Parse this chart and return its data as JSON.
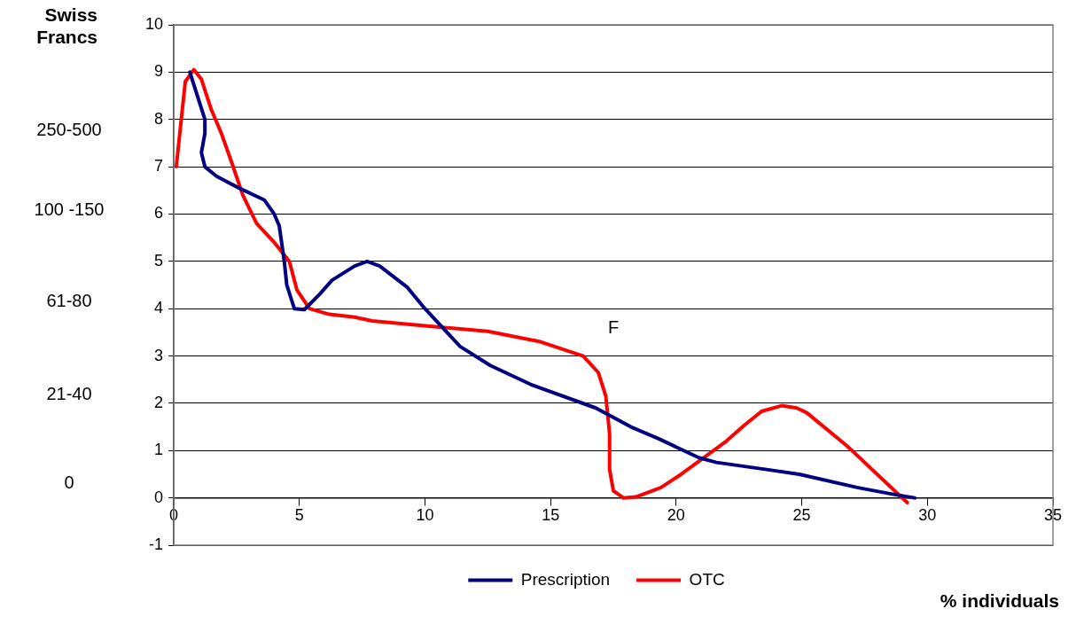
{
  "chart_data": {
    "type": "line",
    "ylabel": "Swiss Francs",
    "xlabel": "% individuals",
    "xlim": [
      0,
      35
    ],
    "xticks": [
      0,
      5,
      10,
      15,
      20,
      25,
      30,
      35
    ],
    "ylim": [
      -1,
      10
    ],
    "yticks": [
      -1,
      0,
      1,
      2,
      3,
      4,
      5,
      6,
      7,
      8,
      9,
      10
    ],
    "grid": "y",
    "legend": "bottom",
    "marker": "none",
    "line_style": "solid",
    "annotations": [
      "250-500",
      "100 -150",
      "61-80",
      "21-40",
      "0",
      "F"
    ],
    "series": [
      {
        "name": "Prescription",
        "color": "#000080",
        "x": [
          0.64,
          1.24,
          1.24,
          1.1,
          1.24,
          1.7,
          2.6,
          3.6,
          4.0,
          4.2,
          4.4,
          4.5,
          4.8,
          5.2,
          5.8,
          6.3,
          7.2,
          7.7,
          8.2,
          9.3,
          10.0,
          11.4,
          12.6,
          14.2,
          16.8,
          18.2,
          19.3,
          20.9,
          21.6,
          23.6,
          24.9,
          27.2,
          28.6,
          29.5
        ],
        "values": [
          9.0,
          8.0,
          7.7,
          7.3,
          7.0,
          6.8,
          6.55,
          6.3,
          6.0,
          5.75,
          5.0,
          4.5,
          4.0,
          3.98,
          4.3,
          4.6,
          4.9,
          5.0,
          4.9,
          4.45,
          4.0,
          3.2,
          2.8,
          2.4,
          1.9,
          1.5,
          1.25,
          0.85,
          0.75,
          0.6,
          0.5,
          0.22,
          0.08,
          0
        ]
      },
      {
        "name": "OTC",
        "color": "#ff0000",
        "x": [
          0.1,
          0.46,
          0.8,
          1.1,
          1.5,
          1.9,
          2.3,
          2.75,
          3.3,
          4.0,
          4.6,
          4.9,
          5.4,
          6.2,
          7.2,
          7.9,
          10.0,
          12.5,
          14.6,
          16.3,
          16.9,
          17.2,
          17.35,
          17.35,
          17.5,
          17.9,
          18.4,
          19.4,
          20.2,
          22.0,
          22.7,
          23.4,
          24.2,
          24.8,
          25.2,
          26.8,
          29.2
        ],
        "values": [
          7.0,
          8.8,
          9.05,
          8.85,
          8.2,
          7.7,
          7.1,
          6.4,
          5.8,
          5.4,
          5.0,
          4.4,
          4.0,
          3.88,
          3.82,
          3.74,
          3.64,
          3.52,
          3.3,
          3.0,
          2.65,
          2.15,
          1.35,
          0.6,
          0.15,
          0,
          0.02,
          0.22,
          0.5,
          1.2,
          1.53,
          1.83,
          1.95,
          1.9,
          1.8,
          1.1,
          -0.1
        ]
      }
    ]
  }
}
